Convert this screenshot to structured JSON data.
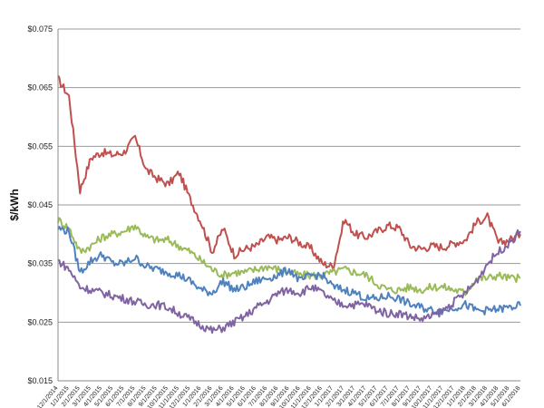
{
  "chart_data": {
    "type": "line",
    "ylabel": "$/kWh",
    "ylim": [
      0.015,
      0.075
    ],
    "yticks": [
      "$0.015",
      "$0.025",
      "$0.035",
      "$0.045",
      "$0.055",
      "$0.065",
      "$0.075"
    ],
    "ytick_values": [
      0.015,
      0.025,
      0.035,
      0.045,
      0.055,
      0.065,
      0.075
    ],
    "grid": true,
    "x": [
      "2014-12",
      "2015-01",
      "2015-02",
      "2015-03",
      "2015-04",
      "2015-05",
      "2015-06",
      "2015-07",
      "2015-08",
      "2015-09",
      "2015-10",
      "2015-11",
      "2015-12",
      "2016-01",
      "2016-02",
      "2016-03",
      "2016-04",
      "2016-05",
      "2016-06",
      "2016-07",
      "2016-08",
      "2016-09",
      "2016-10",
      "2016-11",
      "2016-12",
      "2017-01",
      "2017-02",
      "2017-03",
      "2017-04",
      "2017-05",
      "2017-06",
      "2017-07",
      "2017-08",
      "2017-09",
      "2017-10",
      "2017-11",
      "2017-12",
      "2018-01",
      "2018-02",
      "2018-03",
      "2018-04",
      "2018-05",
      "2018-06"
    ],
    "xtick_labels": [
      "12/1/2014",
      "1/1/2015",
      "2/1/2015",
      "3/1/2015",
      "4/1/2015",
      "5/1/2015",
      "6/1/2015",
      "7/1/2015",
      "8/1/2015",
      "9/1/2015",
      "10/1/2015",
      "11/1/2015",
      "12/1/2015",
      "1/1/2016",
      "2/1/2016",
      "3/1/2016",
      "4/1/2016",
      "5/1/2016",
      "6/1/2016",
      "7/1/2016",
      "8/1/2016",
      "9/1/2016",
      "10/1/2016",
      "11/1/2016",
      "12/1/2016",
      "1/1/2017",
      "2/1/2017",
      "3/1/2017",
      "4/1/2017",
      "5/1/2017",
      "6/1/2017",
      "7/1/2017",
      "8/1/2017",
      "9/1/2017",
      "10/1/2017",
      "11/1/2017",
      "12/1/2017",
      "1/1/2018",
      "2/1/2018",
      "3/1/2018",
      "4/1/2018",
      "5/1/2018",
      "6/1/2018"
    ],
    "series": [
      {
        "color": "#c0504d",
        "values": [
          0.0665,
          0.0635,
          0.0475,
          0.053,
          0.054,
          0.0535,
          0.054,
          0.0565,
          0.051,
          0.0495,
          0.0485,
          0.0505,
          0.046,
          0.042,
          0.037,
          0.041,
          0.0365,
          0.0375,
          0.038,
          0.0395,
          0.039,
          0.0395,
          0.0385,
          0.0375,
          0.035,
          0.0345,
          0.0425,
          0.04,
          0.0395,
          0.0405,
          0.0415,
          0.041,
          0.038,
          0.0375,
          0.038,
          0.0378,
          0.0385,
          0.039,
          0.042,
          0.043,
          0.0385,
          0.039,
          0.04
        ]
      },
      {
        "color": "#9bbb59",
        "values": [
          0.0425,
          0.041,
          0.037,
          0.038,
          0.0395,
          0.04,
          0.0405,
          0.0415,
          0.0395,
          0.039,
          0.039,
          0.038,
          0.037,
          0.0355,
          0.034,
          0.033,
          0.0335,
          0.0335,
          0.034,
          0.0345,
          0.034,
          0.0335,
          0.033,
          0.033,
          0.033,
          0.0335,
          0.034,
          0.0335,
          0.033,
          0.0315,
          0.0305,
          0.0305,
          0.031,
          0.0305,
          0.031,
          0.031,
          0.0305,
          0.03,
          0.0325,
          0.0325,
          0.033,
          0.0325,
          0.0325
        ]
      },
      {
        "color": "#4f81bd",
        "values": [
          0.041,
          0.0405,
          0.0335,
          0.0355,
          0.0365,
          0.035,
          0.035,
          0.036,
          0.0345,
          0.034,
          0.0335,
          0.033,
          0.032,
          0.0305,
          0.03,
          0.032,
          0.0305,
          0.031,
          0.032,
          0.0325,
          0.033,
          0.034,
          0.032,
          0.033,
          0.033,
          0.031,
          0.0305,
          0.03,
          0.029,
          0.029,
          0.0295,
          0.029,
          0.028,
          0.0275,
          0.027,
          0.027,
          0.0275,
          0.028,
          0.027,
          0.027,
          0.0272,
          0.0275,
          0.0278
        ]
      },
      {
        "color": "#8064a2",
        "values": [
          0.0355,
          0.034,
          0.031,
          0.0305,
          0.03,
          0.0295,
          0.029,
          0.0285,
          0.028,
          0.028,
          0.0275,
          0.0265,
          0.0255,
          0.0245,
          0.0235,
          0.024,
          0.025,
          0.026,
          0.0275,
          0.0285,
          0.03,
          0.0305,
          0.03,
          0.031,
          0.03,
          0.0285,
          0.028,
          0.028,
          0.028,
          0.027,
          0.0265,
          0.0265,
          0.026,
          0.0255,
          0.026,
          0.027,
          0.0285,
          0.03,
          0.032,
          0.035,
          0.037,
          0.0385,
          0.0405
        ]
      }
    ]
  }
}
